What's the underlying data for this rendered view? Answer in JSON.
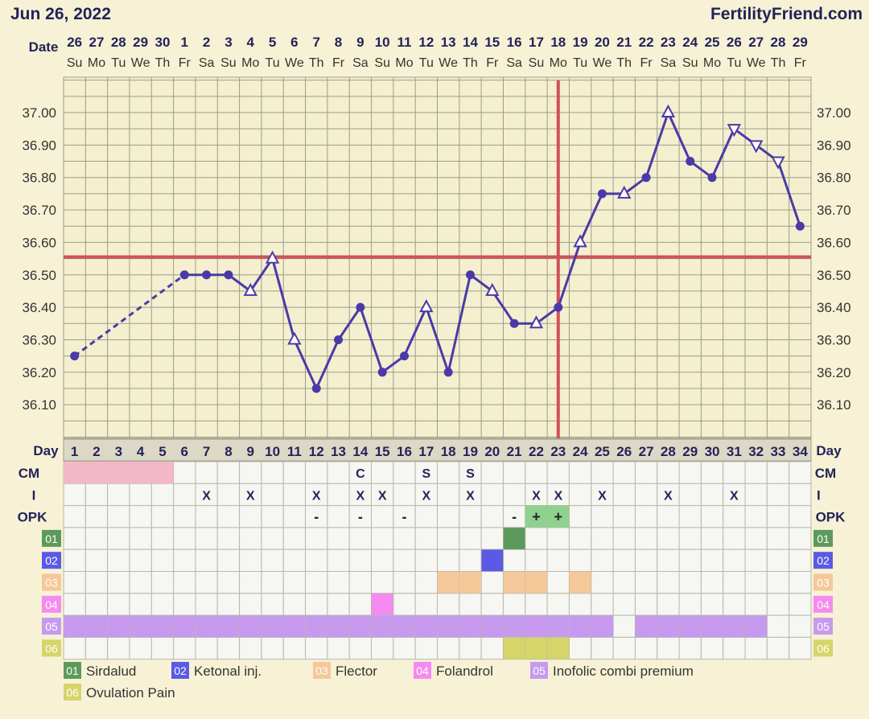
{
  "header": {
    "date": "Jun 26, 2022",
    "site": "FertilityFriend.com"
  },
  "row_labels": {
    "date": "Date",
    "day": "Day",
    "cm": "CM",
    "i": "I",
    "opk": "OPK"
  },
  "dates": [
    "26",
    "27",
    "28",
    "29",
    "30",
    "1",
    "2",
    "3",
    "4",
    "5",
    "6",
    "7",
    "8",
    "9",
    "10",
    "11",
    "12",
    "13",
    "14",
    "15",
    "16",
    "17",
    "18",
    "19",
    "20",
    "21",
    "22",
    "23",
    "24",
    "25",
    "26",
    "27",
    "28",
    "29"
  ],
  "weekdays": [
    "Su",
    "Mo",
    "Tu",
    "We",
    "Th",
    "Fr",
    "Sa",
    "Su",
    "Mo",
    "Tu",
    "We",
    "Th",
    "Fr",
    "Sa",
    "Su",
    "Mo",
    "Tu",
    "We",
    "Th",
    "Fr",
    "Sa",
    "Su",
    "Mo",
    "Tu",
    "We",
    "Th",
    "Fr",
    "Sa",
    "Su",
    "Mo",
    "Tu",
    "We",
    "Th",
    "Fr"
  ],
  "chart_data": {
    "type": "line",
    "x": [
      1,
      2,
      3,
      4,
      5,
      6,
      7,
      8,
      9,
      10,
      11,
      12,
      13,
      14,
      15,
      16,
      17,
      18,
      19,
      20,
      21,
      22,
      23,
      24,
      25,
      26,
      27,
      28,
      29,
      30,
      31,
      32,
      33,
      34
    ],
    "y_ticks": [
      "37.00",
      "36.90",
      "36.80",
      "36.70",
      "36.60",
      "36.50",
      "36.40",
      "36.30",
      "36.20",
      "36.10"
    ],
    "ylim": [
      36.0,
      37.1
    ],
    "points": [
      {
        "day": 1,
        "temp": 36.25,
        "marker": "dot"
      },
      {
        "day": 6,
        "temp": 36.5,
        "marker": "dot"
      },
      {
        "day": 7,
        "temp": 36.5,
        "marker": "dot"
      },
      {
        "day": 8,
        "temp": 36.5,
        "marker": "dot"
      },
      {
        "day": 9,
        "temp": 36.45,
        "marker": "triangle"
      },
      {
        "day": 10,
        "temp": 36.55,
        "marker": "triangle"
      },
      {
        "day": 11,
        "temp": 36.3,
        "marker": "triangle"
      },
      {
        "day": 12,
        "temp": 36.15,
        "marker": "dot"
      },
      {
        "day": 13,
        "temp": 36.3,
        "marker": "dot"
      },
      {
        "day": 14,
        "temp": 36.4,
        "marker": "dot"
      },
      {
        "day": 15,
        "temp": 36.2,
        "marker": "dot"
      },
      {
        "day": 16,
        "temp": 36.25,
        "marker": "dot"
      },
      {
        "day": 17,
        "temp": 36.4,
        "marker": "triangle"
      },
      {
        "day": 18,
        "temp": 36.2,
        "marker": "dot"
      },
      {
        "day": 19,
        "temp": 36.5,
        "marker": "dot"
      },
      {
        "day": 20,
        "temp": 36.45,
        "marker": "triangle"
      },
      {
        "day": 21,
        "temp": 36.35,
        "marker": "dot"
      },
      {
        "day": 22,
        "temp": 36.35,
        "marker": "triangle"
      },
      {
        "day": 23,
        "temp": 36.4,
        "marker": "dot"
      },
      {
        "day": 24,
        "temp": 36.6,
        "marker": "triangle"
      },
      {
        "day": 25,
        "temp": 36.75,
        "marker": "dot"
      },
      {
        "day": 26,
        "temp": 36.75,
        "marker": "triangle"
      },
      {
        "day": 27,
        "temp": 36.8,
        "marker": "dot"
      },
      {
        "day": 28,
        "temp": 37.0,
        "marker": "triangle"
      },
      {
        "day": 29,
        "temp": 36.85,
        "marker": "dot"
      },
      {
        "day": 30,
        "temp": 36.8,
        "marker": "dot"
      },
      {
        "day": 31,
        "temp": 36.95,
        "marker": "triangle_down"
      },
      {
        "day": 32,
        "temp": 36.9,
        "marker": "triangle_down"
      },
      {
        "day": 33,
        "temp": 36.85,
        "marker": "triangle_down"
      },
      {
        "day": 34,
        "temp": 36.65,
        "marker": "dot"
      }
    ],
    "dashed_segments": [
      [
        1,
        6
      ]
    ],
    "coverline_temp": 36.555,
    "ovulation_day": 23,
    "grid": true,
    "colors": {
      "line": "#4a3aa8",
      "coverline": "#d0505a",
      "grid": "#9c9c8a"
    }
  },
  "cm": {
    "menses_days": [
      1,
      2,
      3,
      4,
      5
    ],
    "menses_color": "#f3b8c8",
    "marks": [
      {
        "day": 14,
        "text": "C"
      },
      {
        "day": 17,
        "text": "S"
      },
      {
        "day": 19,
        "text": "S"
      }
    ]
  },
  "intercourse": {
    "days": [
      7,
      9,
      12,
      14,
      15,
      17,
      19,
      22,
      23,
      25,
      28,
      31
    ],
    "text": "X"
  },
  "opk": [
    {
      "day": 12,
      "text": "-",
      "green": false
    },
    {
      "day": 14,
      "text": "-",
      "green": false
    },
    {
      "day": 16,
      "text": "-",
      "green": false
    },
    {
      "day": 21,
      "text": "-",
      "green": false
    },
    {
      "day": 22,
      "text": "+",
      "green": true
    },
    {
      "day": 23,
      "text": "+",
      "green": true
    }
  ],
  "meds": [
    {
      "code": "01",
      "name": "Sirdalud",
      "color": "#5c9a5c",
      "days": [
        21
      ]
    },
    {
      "code": "02",
      "name": "Ketonal inj.",
      "color": "#5a5ae6",
      "days": [
        20
      ]
    },
    {
      "code": "03",
      "name": "Flector",
      "color": "#f5c89a",
      "days": [
        18,
        19,
        21,
        22,
        24
      ]
    },
    {
      "code": "04",
      "name": "Folandrol",
      "color": "#f58af0",
      "days": [
        15
      ]
    },
    {
      "code": "05",
      "name": "Inofolic combi premium",
      "color": "#c79af0",
      "days": [
        1,
        2,
        3,
        4,
        5,
        6,
        7,
        8,
        9,
        10,
        11,
        12,
        13,
        14,
        15,
        16,
        17,
        18,
        19,
        20,
        21,
        22,
        23,
        24,
        25,
        27,
        28,
        29,
        30,
        31,
        32
      ]
    },
    {
      "code": "06",
      "name": "Ovulation Pain",
      "color": "#d5d56a",
      "days": [
        21,
        22,
        23
      ]
    }
  ]
}
